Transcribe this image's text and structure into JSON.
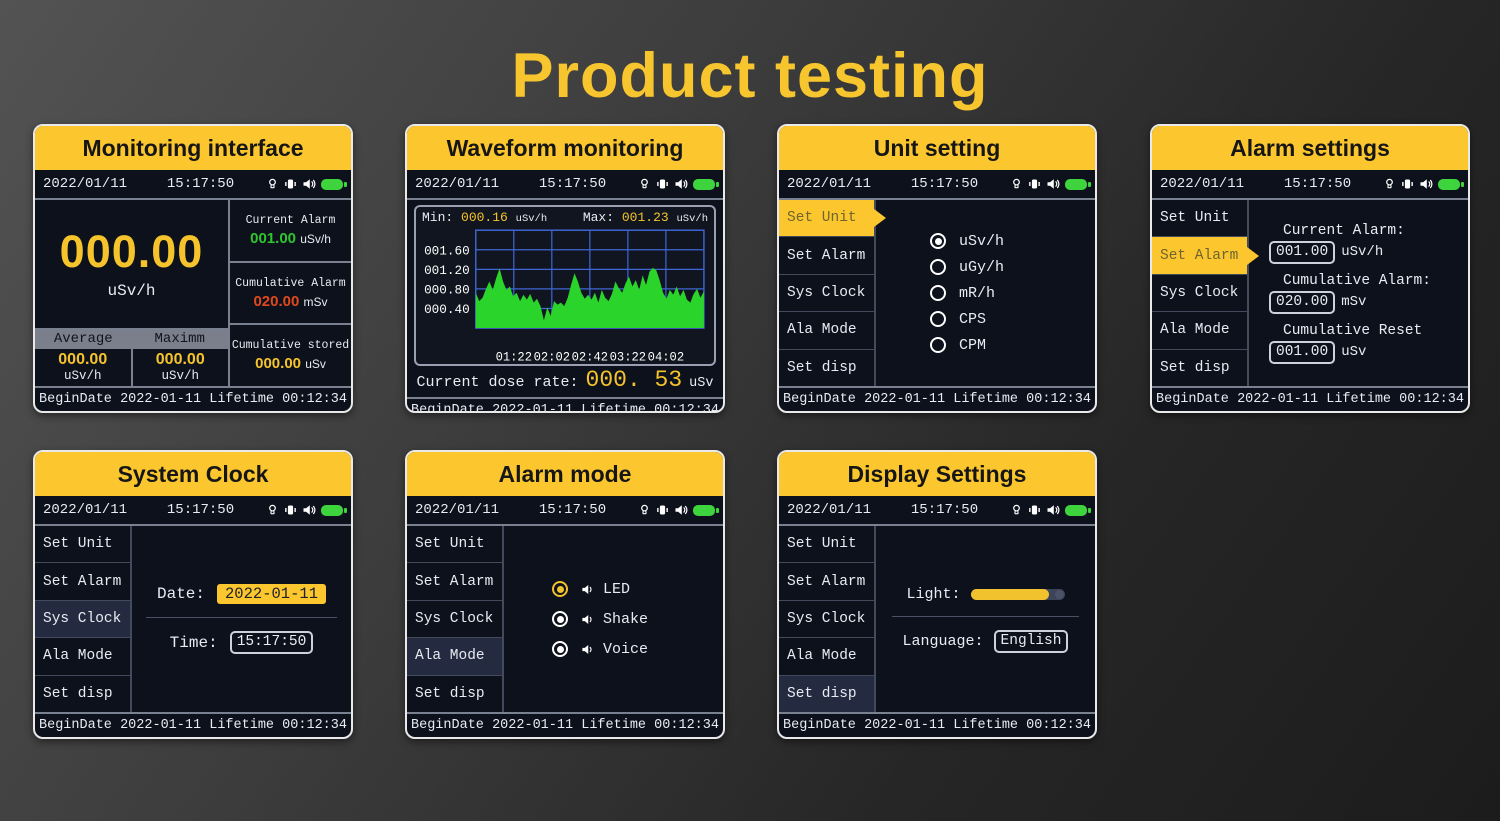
{
  "page": {
    "title": "Product testing",
    "accent_color": "#fcc72e",
    "background_dark": "#1c1c1c"
  },
  "status": {
    "date": "2022/01/11",
    "time": "15:17:50",
    "icons": [
      "light-icon",
      "vibrate-icon",
      "speaker-icon",
      "battery-icon"
    ],
    "battery_color": "#3ed43e"
  },
  "footer": {
    "begin_label": "BeginDate",
    "begin_date": "2022-01-11",
    "lifetime_label": "Lifetime",
    "lifetime": "00:12:34"
  },
  "menu": {
    "items": [
      "Set Unit",
      "Set Alarm",
      "Sys Clock",
      "Ala Mode",
      "Set disp"
    ]
  },
  "monitoring": {
    "title": "Monitoring interface",
    "value": "000.00",
    "unit": "uSv/h",
    "avg_label": "Average",
    "avg_value": "000.00",
    "avg_unit": "uSv/h",
    "max_label": "Maximm",
    "max_value": "000.00",
    "max_unit": "uSv/h",
    "current_alarm": {
      "label": "Current Alarm",
      "value": "001.00",
      "unit": "uSv/h",
      "color": "#2fc52f"
    },
    "cumulative_alarm": {
      "label": "Cumulative Alarm",
      "value": "020.00",
      "unit": "mSv",
      "color": "#e0491c"
    },
    "cumulative_stored": {
      "label": "Cumulative stored",
      "value": "000.00",
      "unit": "uSv",
      "color": "#f5c42c"
    }
  },
  "waveform": {
    "title": "Waveform monitoring",
    "min_label": "Min:",
    "min_value": "000.16",
    "min_unit": "uSv/h",
    "max_label": "Max:",
    "max_value": "001.23",
    "max_unit": "uSv/h",
    "dose_label": "Current dose rate:",
    "dose_value": "000. 53",
    "dose_unit": "uSv"
  },
  "unit_setting": {
    "title": "Unit setting",
    "active_item": "Set Unit",
    "options": [
      {
        "label": "uSv/h",
        "selected": true
      },
      {
        "label": "uGy/h",
        "selected": false
      },
      {
        "label": "mR/h",
        "selected": false
      },
      {
        "label": "CPS",
        "selected": false
      },
      {
        "label": "CPM",
        "selected": false
      }
    ]
  },
  "alarm_settings": {
    "title": "Alarm settings",
    "active_item": "Set Alarm",
    "fields": [
      {
        "label": "Current Alarm:",
        "value": "001.00",
        "unit": "uSv/h"
      },
      {
        "label": "Cumulative Alarm:",
        "value": "020.00",
        "unit": "mSv"
      },
      {
        "label": "Cumulative Reset",
        "value": "001.00",
        "unit": "uSv"
      }
    ]
  },
  "system_clock": {
    "title": "System Clock",
    "active_item": "Sys Clock",
    "date_label": "Date:",
    "date_value": "2022-01-11",
    "time_label": "Time:",
    "time_value": "15:17:50"
  },
  "alarm_mode": {
    "title": "Alarm mode",
    "active_item": "Ala Mode",
    "options": [
      {
        "label": "LED",
        "selected": true
      },
      {
        "label": "Shake",
        "selected": false
      },
      {
        "label": "Voice",
        "selected": false
      }
    ]
  },
  "display_settings": {
    "title": "Display Settings",
    "active_item": "Set disp",
    "light_label": "Light:",
    "light_percent": 84,
    "language_label": "Language:",
    "language_value": "English"
  },
  "chart_data": {
    "type": "area",
    "title": "Waveform monitoring",
    "ylabel": "uSv/h",
    "min": 0.16,
    "max": 1.23,
    "current_dose": 0.53,
    "ylim": [
      0,
      2.0
    ],
    "grid": true,
    "grid_color": "#3f66d4",
    "series_color": "#2bd42b",
    "yticks": [
      {
        "value": 1.6,
        "label": "001.60"
      },
      {
        "value": 1.2,
        "label": "001.20"
      },
      {
        "value": 0.8,
        "label": "000.80"
      },
      {
        "value": 0.4,
        "label": "000.40"
      }
    ],
    "xtick_labels": [
      "01:22",
      "02:02",
      "02:42",
      "03:22",
      "04:02"
    ],
    "values": [
      0.72,
      0.55,
      0.62,
      0.8,
      0.95,
      0.78,
      1.02,
      1.22,
      0.95,
      0.78,
      0.85,
      0.65,
      0.72,
      0.55,
      0.68,
      0.58,
      0.7,
      0.52,
      0.6,
      0.45,
      0.16,
      0.42,
      0.25,
      0.55,
      0.48,
      0.52,
      0.45,
      0.62,
      0.88,
      1.12,
      0.95,
      0.72,
      0.6,
      0.68,
      0.58,
      0.72,
      0.52,
      0.78,
      0.62,
      0.55,
      0.7,
      0.95,
      0.82,
      0.72,
      0.92,
      1.05,
      0.85,
      0.98,
      0.78,
      1.08,
      0.88,
      1.15,
      1.23,
      1.18,
      0.98,
      0.72,
      0.6,
      0.78,
      0.68,
      0.85,
      0.65,
      0.78,
      0.58,
      0.52,
      0.7,
      0.8,
      0.62,
      0.75
    ]
  }
}
